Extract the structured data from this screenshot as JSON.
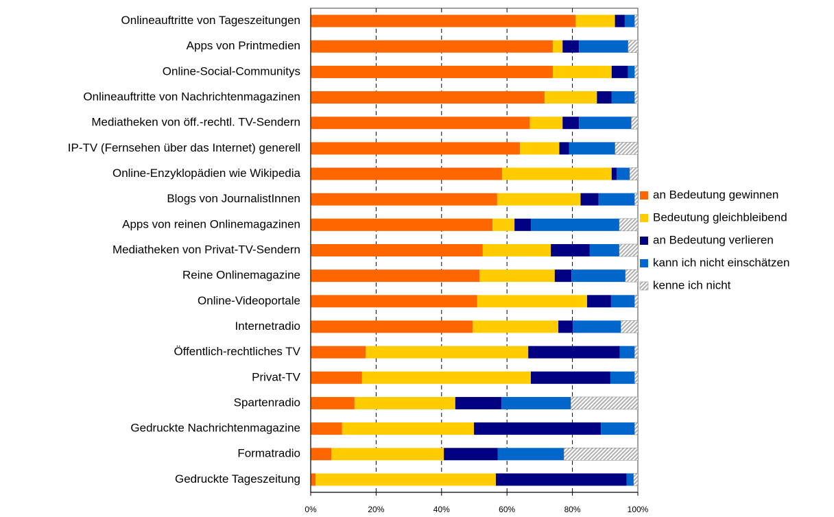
{
  "chart_data": {
    "type": "stacked-barh",
    "categories": [
      "Onlineauftritte von Tageszeitungen",
      "Apps von Printmedien",
      "Online-Social-Communitys",
      "Onlineauftritte von Nachrichtenmagazinen",
      "Mediatheken von öff.-rechtl. TV-Sendern",
      "IP-TV (Fernsehen über das Internet) generell",
      "Online-Enzyklopädien wie Wikipedia",
      "Blogs von JournalistInnen",
      "Apps von reinen Onlinemagazinen",
      "Mediatheken von Privat-TV-Sendern",
      "Reine Onlinemagazine",
      "Online-Videoportale",
      "Internetradio",
      "Öffentlich-rechtliches TV",
      "Privat-TV",
      "Spartenradio",
      "Gedruckte Nachrichtenmagazine",
      "Formatradio",
      "Gedruckte Tageszeitung"
    ],
    "series": [
      {
        "name": "an Bedeutung gewinnen",
        "color": "#ff6600",
        "values": [
          81,
          74,
          74,
          71.5,
          67,
          64,
          58.5,
          57,
          55.6,
          52.6,
          51.6,
          50.9,
          49.5,
          16.8,
          15.7,
          13.4,
          9.6,
          6.3,
          1.5
        ]
      },
      {
        "name": "Bedeutung gleichbleibend",
        "color": "#ffcc00",
        "values": [
          12,
          3,
          18,
          16,
          10,
          12,
          33.5,
          25.5,
          6.7,
          20.8,
          23,
          33.6,
          26.2,
          49.7,
          51.6,
          30.8,
          40.3,
          34.4,
          55.1
        ]
      },
      {
        "name": "an Bedeutung verlieren",
        "color": "#000080",
        "values": [
          3,
          5,
          5,
          4.5,
          5,
          3,
          1.5,
          5.5,
          5,
          11.9,
          5.1,
          7.3,
          4.4,
          28,
          24.3,
          14.1,
          38.8,
          16.5,
          40
        ]
      },
      {
        "name": "kann ich nicht einschätzen",
        "color": "#0066cc",
        "values": [
          3,
          15,
          2,
          7,
          16,
          14,
          4,
          11,
          27,
          9,
          16.5,
          7.2,
          14.7,
          4.5,
          7.4,
          21.2,
          10.3,
          20.2,
          2.1
        ]
      },
      {
        "name": "kenne ich nicht",
        "color": "#b0b0b0",
        "values": [
          1,
          3,
          1,
          1,
          2,
          7,
          2.5,
          1,
          5.7,
          5.7,
          3.8,
          1,
          5.2,
          1,
          1,
          20.5,
          1,
          22.6,
          1.3
        ]
      }
    ],
    "xlim": [
      0,
      100
    ],
    "xticks": [
      {
        "value": 0,
        "label": "0%"
      },
      {
        "value": 20,
        "label": "20%"
      },
      {
        "value": 40,
        "label": "40%"
      },
      {
        "value": 60,
        "label": "60%"
      },
      {
        "value": 80,
        "label": "80%"
      },
      {
        "value": 100,
        "label": "100%"
      }
    ],
    "grid": true,
    "legend": "right"
  }
}
